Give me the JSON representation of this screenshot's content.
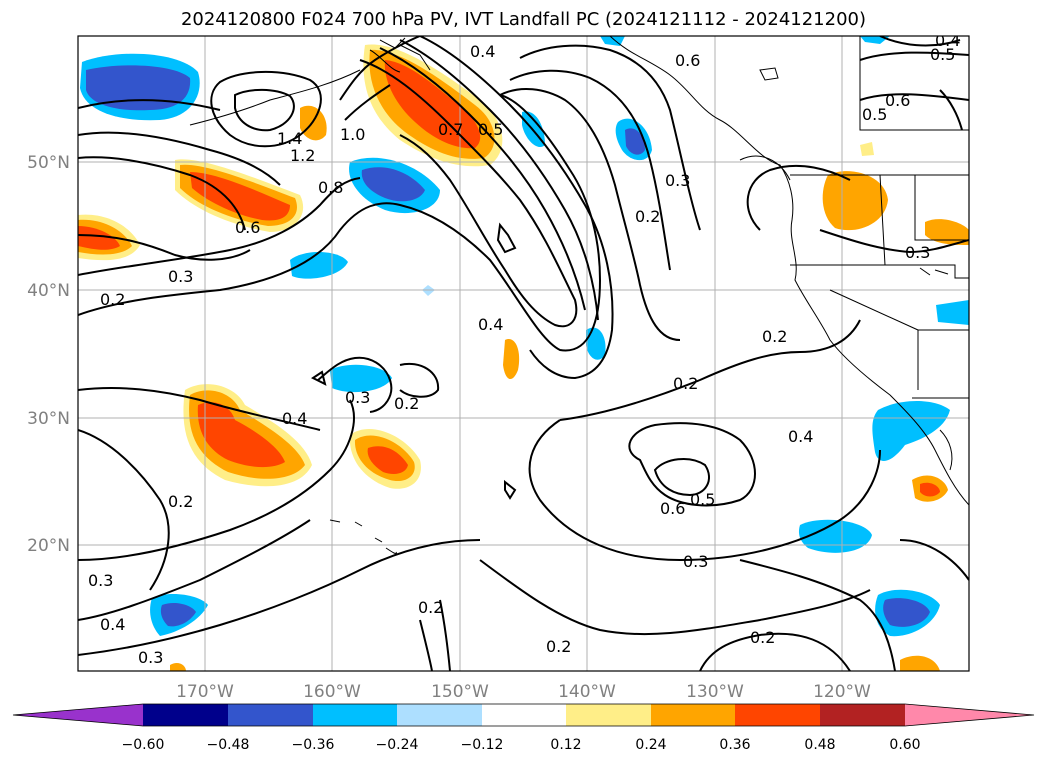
{
  "title": "2024120800 F024 700 hPa PV, IVT Landfall PC (2024121112 - 2024121200)",
  "lat_labels": [
    "50°N",
    "40°N",
    "30°N",
    "20°N"
  ],
  "lon_labels": [
    "170°W",
    "160°W",
    "150°W",
    "140°W",
    "130°W",
    "120°W"
  ],
  "contour_labels": [
    "0.4",
    "0.6",
    "0.5",
    "0.6",
    "0.5",
    "0.4",
    "1.4",
    "1.2",
    "1.0",
    "0.7",
    "0.5",
    "0.3",
    "0.8",
    "0.6",
    "0.2",
    "0.3",
    "0.3",
    "0.2",
    "0.4",
    "0.2",
    "0.3",
    "0.2",
    "0.4",
    "0.2",
    "0.4",
    "0.6",
    "0.5",
    "0.2",
    "0.3",
    "0.3",
    "0.2",
    "0.2",
    "0.3",
    "0.4",
    "0.2"
  ],
  "colorbar": {
    "ticks": [
      "−0.60",
      "−0.48",
      "−0.36",
      "−0.24",
      "−0.12",
      "0.12",
      "0.24",
      "0.36",
      "0.48",
      "0.60"
    ],
    "colors": [
      "#9932CC",
      "#00008B",
      "#3355CC",
      "#00BFFF",
      "#ADDFFF",
      "#FFFFFF",
      "#FFEE88",
      "#FFA500",
      "#FF4500",
      "#B22222",
      "#FF88AA"
    ]
  }
}
